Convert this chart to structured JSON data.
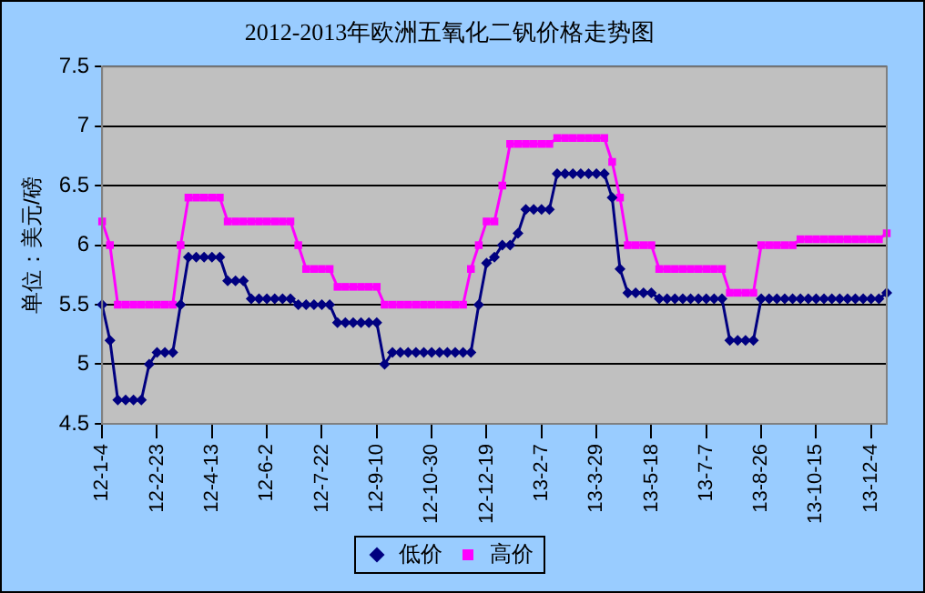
{
  "chart_data": {
    "type": "line",
    "title": "2012-2013年欧洲五氧化二钒价格走势图",
    "ylabel": "单位：美元/磅",
    "categories": [
      "12-1-4",
      null,
      null,
      null,
      null,
      null,
      null,
      "12-2-23",
      null,
      null,
      null,
      null,
      null,
      null,
      "12-4-13",
      null,
      null,
      null,
      null,
      null,
      null,
      "12-6-2",
      null,
      null,
      null,
      null,
      null,
      null,
      "12-7-22",
      null,
      null,
      null,
      null,
      null,
      null,
      "12-9-10",
      null,
      null,
      null,
      null,
      null,
      null,
      "12-10-30",
      null,
      null,
      null,
      null,
      null,
      null,
      "12-12-19",
      null,
      null,
      null,
      null,
      null,
      null,
      "13-2-7",
      null,
      null,
      null,
      null,
      null,
      null,
      "13-3-29",
      null,
      null,
      null,
      null,
      null,
      null,
      "13-5-18",
      null,
      null,
      null,
      null,
      null,
      null,
      "13-7-7",
      null,
      null,
      null,
      null,
      null,
      null,
      "13-8-26",
      null,
      null,
      null,
      null,
      null,
      null,
      "13-10-15",
      null,
      null,
      null,
      null,
      null,
      null,
      "13-12-4",
      null,
      null
    ],
    "series": [
      {
        "name": "低价",
        "color": "#000080",
        "marker": "diamond",
        "values": [
          5.5,
          5.2,
          4.7,
          4.7,
          4.7,
          4.7,
          5.0,
          5.1,
          5.1,
          5.1,
          5.5,
          5.9,
          5.9,
          5.9,
          5.9,
          5.9,
          5.7,
          5.7,
          5.7,
          5.55,
          5.55,
          5.55,
          5.55,
          5.55,
          5.55,
          5.5,
          5.5,
          5.5,
          5.5,
          5.5,
          5.35,
          5.35,
          5.35,
          5.35,
          5.35,
          5.35,
          5.0,
          5.1,
          5.1,
          5.1,
          5.1,
          5.1,
          5.1,
          5.1,
          5.1,
          5.1,
          5.1,
          5.1,
          5.5,
          5.85,
          5.9,
          6.0,
          6.0,
          6.1,
          6.3,
          6.3,
          6.3,
          6.3,
          6.6,
          6.6,
          6.6,
          6.6,
          6.6,
          6.6,
          6.6,
          6.4,
          5.8,
          5.6,
          5.6,
          5.6,
          5.6,
          5.55,
          5.55,
          5.55,
          5.55,
          5.55,
          5.55,
          5.55,
          5.55,
          5.55,
          5.2,
          5.2,
          5.2,
          5.2,
          5.55,
          5.55,
          5.55,
          5.55,
          5.55,
          5.55,
          5.55,
          5.55,
          5.55,
          5.55,
          5.55,
          5.55,
          5.55,
          5.55,
          5.55,
          5.55,
          5.6
        ]
      },
      {
        "name": "高价",
        "color": "#ff00ff",
        "marker": "square",
        "values": [
          6.2,
          6.0,
          5.5,
          5.5,
          5.5,
          5.5,
          5.5,
          5.5,
          5.5,
          5.5,
          6.0,
          6.4,
          6.4,
          6.4,
          6.4,
          6.4,
          6.2,
          6.2,
          6.2,
          6.2,
          6.2,
          6.2,
          6.2,
          6.2,
          6.2,
          6.0,
          5.8,
          5.8,
          5.8,
          5.8,
          5.65,
          5.65,
          5.65,
          5.65,
          5.65,
          5.65,
          5.5,
          5.5,
          5.5,
          5.5,
          5.5,
          5.5,
          5.5,
          5.5,
          5.5,
          5.5,
          5.5,
          5.8,
          6.0,
          6.2,
          6.2,
          6.5,
          6.85,
          6.85,
          6.85,
          6.85,
          6.85,
          6.85,
          6.9,
          6.9,
          6.9,
          6.9,
          6.9,
          6.9,
          6.9,
          6.7,
          6.4,
          6.0,
          6.0,
          6.0,
          6.0,
          5.8,
          5.8,
          5.8,
          5.8,
          5.8,
          5.8,
          5.8,
          5.8,
          5.8,
          5.6,
          5.6,
          5.6,
          5.6,
          6.0,
          6.0,
          6.0,
          6.0,
          6.0,
          6.05,
          6.05,
          6.05,
          6.05,
          6.05,
          6.05,
          6.05,
          6.05,
          6.05,
          6.05,
          6.05,
          6.1
        ]
      }
    ],
    "ylim": [
      4.5,
      7.5
    ],
    "yticks": [
      4.5,
      5,
      5.5,
      6,
      6.5,
      7,
      7.5
    ],
    "grid": "y",
    "legend": "bottom"
  }
}
